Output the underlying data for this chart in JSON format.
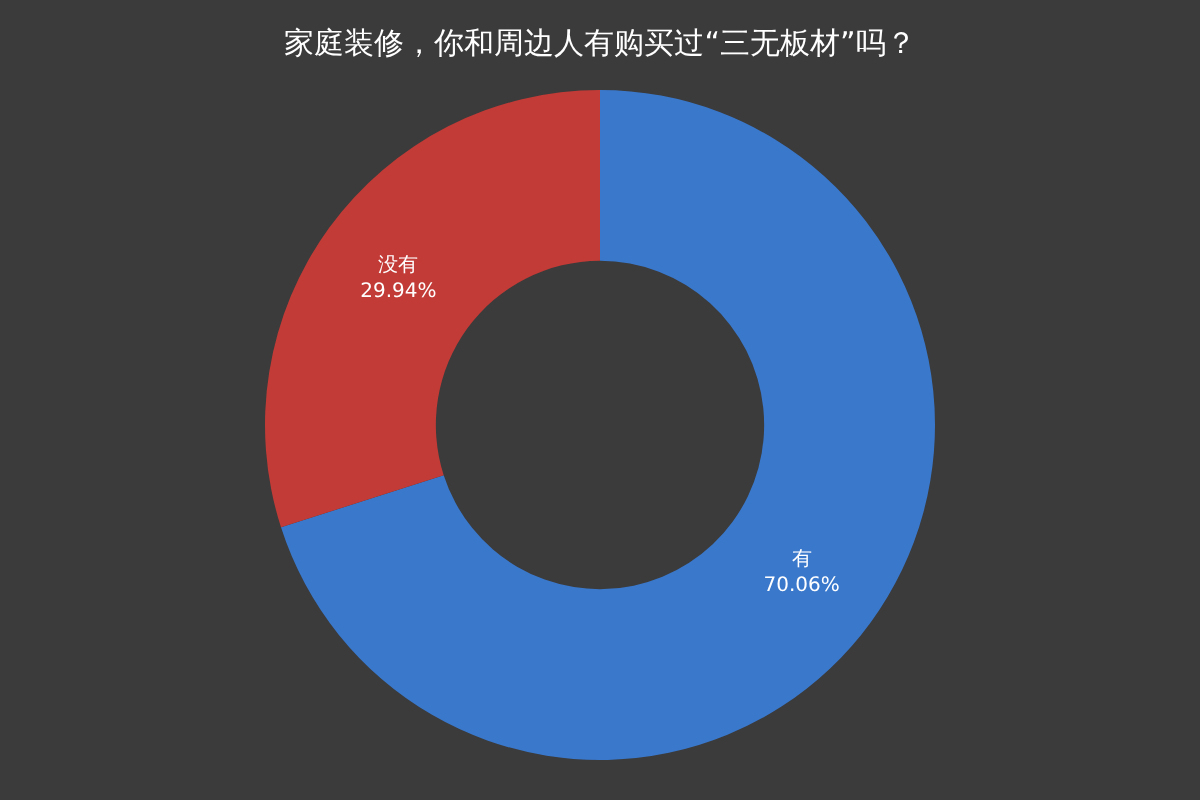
{
  "chart_data": {
    "type": "donut",
    "title": "家庭装修，你和周边人有购买过“三无板材”吗？",
    "categories": [
      "有",
      "没有"
    ],
    "values": [
      70.06,
      29.94
    ],
    "value_labels": [
      "70.06%",
      "29.94%"
    ],
    "colors": [
      "#3a78cc",
      "#c23b37"
    ],
    "legend": false
  }
}
